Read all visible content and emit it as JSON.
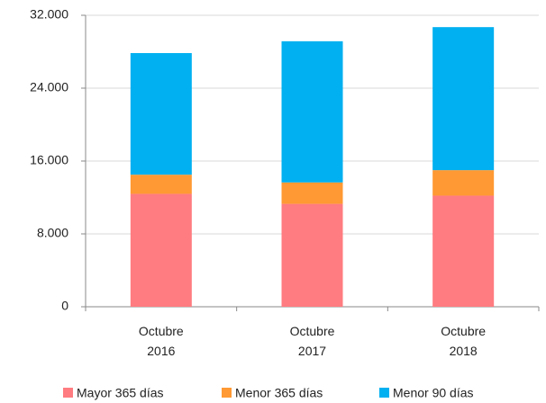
{
  "chart_data": {
    "type": "stacked_bar",
    "categories": [
      "Octubre 2016",
      "Octubre 2017",
      "Octubre 2018"
    ],
    "series": [
      {
        "name": "Mayor 365 días",
        "color": "#ff7c80",
        "values": [
          12400,
          11300,
          12200
        ]
      },
      {
        "name": "Menor 365 días",
        "color": "#ff9933",
        "values": [
          2100,
          2350,
          2800
        ]
      },
      {
        "name": "Menor 90 días",
        "color": "#00b0f0",
        "values": [
          13350,
          15500,
          15700
        ]
      }
    ],
    "ylim": [
      0,
      32000
    ],
    "yticks": [
      0,
      {
        "value": 8000,
        "label": "8.000"
      },
      {
        "value": 16000,
        "label": "16.000"
      },
      {
        "value": 24000,
        "label": "24.000"
      },
      {
        "value": 32000,
        "label": "32.000"
      }
    ],
    "grid": true,
    "legend": "bottom"
  }
}
